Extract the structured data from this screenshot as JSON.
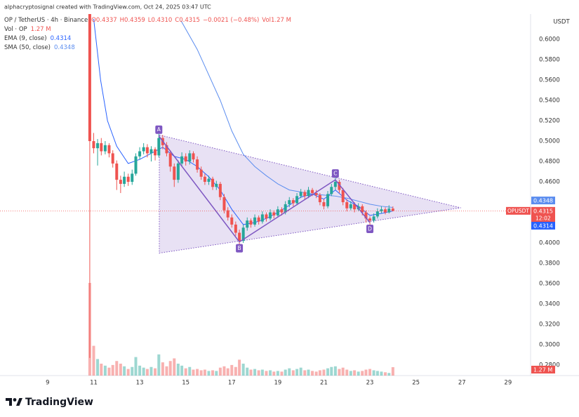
{
  "header": {
    "credit": "alphacryptosignal created with TradingView.com, Oct 24, 2025 03:47 UTC",
    "symbol": "OP / TetherUS · 4h · Binance",
    "ohlc": [
      "O0.4337",
      "H0.4359",
      "L0.4310",
      "C0.4315",
      "−0.0021 (−0.48%)",
      "Vol1.27 M"
    ],
    "currency": "USDT"
  },
  "footer": {
    "brand": "TradingView"
  },
  "chart_data": {
    "type": "candlestick",
    "up_color": "#26a69a",
    "down_color": "#ef5350",
    "x": [
      10.83,
      11,
      11.17,
      11.33,
      11.5,
      11.67,
      11.83,
      12,
      12.17,
      12.33,
      12.5,
      12.67,
      12.83,
      13,
      13.17,
      13.33,
      13.5,
      13.67,
      13.83,
      14,
      14.17,
      14.33,
      14.5,
      14.67,
      14.83,
      15,
      15.17,
      15.33,
      15.5,
      15.67,
      15.83,
      16,
      16.17,
      16.33,
      16.5,
      16.67,
      16.83,
      17,
      17.17,
      17.33,
      17.5,
      17.67,
      17.83,
      18,
      18.17,
      18.33,
      18.5,
      18.67,
      18.83,
      19,
      19.17,
      19.33,
      19.5,
      19.67,
      19.83,
      20,
      20.17,
      20.33,
      20.5,
      20.67,
      20.83,
      21,
      21.17,
      21.33,
      21.5,
      21.67,
      21.83,
      22,
      22.17,
      22.33,
      22.5,
      22.67,
      22.83,
      23,
      23.17,
      23.33,
      23.5,
      23.67,
      23.83,
      24
    ],
    "open": [
      0.64,
      0.5,
      0.493,
      0.498,
      0.49,
      0.496,
      0.488,
      0.478,
      0.462,
      0.458,
      0.465,
      0.46,
      0.468,
      0.485,
      0.49,
      0.494,
      0.488,
      0.492,
      0.486,
      0.503,
      0.496,
      0.488,
      0.475,
      0.462,
      0.478,
      0.485,
      0.48,
      0.488,
      0.482,
      0.472,
      0.465,
      0.46,
      0.463,
      0.455,
      0.458,
      0.445,
      0.432,
      0.425,
      0.418,
      0.41,
      0.402,
      0.415,
      0.422,
      0.418,
      0.425,
      0.421,
      0.428,
      0.424,
      0.43,
      0.427,
      0.433,
      0.43,
      0.438,
      0.442,
      0.439,
      0.446,
      0.45,
      0.446,
      0.452,
      0.449,
      0.447,
      0.44,
      0.436,
      0.448,
      0.455,
      0.46,
      0.452,
      0.44,
      0.434,
      0.438,
      0.433,
      0.436,
      0.43,
      0.424,
      0.422,
      0.426,
      0.431,
      0.433,
      0.43,
      0.4337
    ],
    "high": [
      0.65,
      0.508,
      0.502,
      0.503,
      0.5,
      0.498,
      0.491,
      0.481,
      0.466,
      0.47,
      0.468,
      0.472,
      0.488,
      0.494,
      0.498,
      0.497,
      0.495,
      0.494,
      0.507,
      0.506,
      0.499,
      0.491,
      0.478,
      0.481,
      0.489,
      0.488,
      0.491,
      0.49,
      0.485,
      0.475,
      0.468,
      0.466,
      0.465,
      0.461,
      0.46,
      0.448,
      0.435,
      0.428,
      0.421,
      0.413,
      0.418,
      0.425,
      0.424,
      0.428,
      0.427,
      0.431,
      0.43,
      0.433,
      0.432,
      0.436,
      0.435,
      0.441,
      0.445,
      0.444,
      0.449,
      0.453,
      0.452,
      0.455,
      0.454,
      0.452,
      0.449,
      0.443,
      0.451,
      0.458,
      0.464,
      0.462,
      0.454,
      0.443,
      0.441,
      0.44,
      0.439,
      0.438,
      0.432,
      0.426,
      0.429,
      0.434,
      0.436,
      0.435,
      0.437,
      0.4359
    ],
    "low": [
      0.287,
      0.488,
      0.476,
      0.486,
      0.487,
      0.484,
      0.474,
      0.452,
      0.449,
      0.455,
      0.456,
      0.457,
      0.466,
      0.482,
      0.487,
      0.484,
      0.48,
      0.481,
      0.484,
      0.492,
      0.485,
      0.47,
      0.455,
      0.459,
      0.475,
      0.476,
      0.477,
      0.479,
      0.469,
      0.462,
      0.457,
      0.457,
      0.452,
      0.452,
      0.442,
      0.429,
      0.422,
      0.415,
      0.407,
      0.398,
      0.4,
      0.412,
      0.415,
      0.416,
      0.418,
      0.419,
      0.421,
      0.422,
      0.424,
      0.425,
      0.427,
      0.428,
      0.435,
      0.436,
      0.437,
      0.444,
      0.443,
      0.444,
      0.446,
      0.444,
      0.437,
      0.433,
      0.434,
      0.446,
      0.452,
      0.449,
      0.437,
      0.431,
      0.432,
      0.43,
      0.431,
      0.427,
      0.42,
      0.414,
      0.42,
      0.424,
      0.429,
      0.428,
      0.429,
      0.431
    ],
    "close": [
      0.5,
      0.493,
      0.498,
      0.49,
      0.496,
      0.488,
      0.478,
      0.462,
      0.458,
      0.465,
      0.46,
      0.468,
      0.485,
      0.49,
      0.494,
      0.488,
      0.492,
      0.486,
      0.503,
      0.496,
      0.488,
      0.475,
      0.462,
      0.478,
      0.485,
      0.48,
      0.488,
      0.482,
      0.472,
      0.465,
      0.46,
      0.463,
      0.455,
      0.458,
      0.445,
      0.432,
      0.425,
      0.418,
      0.41,
      0.402,
      0.415,
      0.422,
      0.418,
      0.425,
      0.421,
      0.428,
      0.424,
      0.43,
      0.427,
      0.433,
      0.43,
      0.438,
      0.442,
      0.439,
      0.446,
      0.45,
      0.446,
      0.452,
      0.449,
      0.447,
      0.44,
      0.436,
      0.448,
      0.455,
      0.46,
      0.452,
      0.44,
      0.434,
      0.438,
      0.433,
      0.436,
      0.43,
      0.424,
      0.422,
      0.426,
      0.431,
      0.433,
      0.43,
      0.4337,
      0.4315
    ],
    "volume": {
      "name": "Vol · OP",
      "value_label": "1.27 M",
      "values": [
        14,
        4.5,
        2.5,
        1.8,
        1.5,
        1.2,
        1.6,
        2.2,
        1.8,
        1.4,
        1,
        1.3,
        2.8,
        1.5,
        1.2,
        1,
        1.3,
        1.1,
        3.2,
        2,
        1.4,
        2.2,
        2.6,
        1.8,
        1.5,
        1.1,
        1.3,
        0.9,
        1,
        0.8,
        0.9,
        0.7,
        0.8,
        0.7,
        1.2,
        1.4,
        1.1,
        1.6,
        1.3,
        2.4,
        1.8,
        1.2,
        0.9,
        1,
        0.8,
        0.9,
        0.7,
        0.8,
        0.6,
        0.7,
        0.6,
        0.9,
        1.1,
        0.8,
        1,
        1.2,
        0.8,
        0.9,
        0.7,
        0.6,
        0.8,
        0.9,
        1.1,
        1.3,
        1.4,
        1,
        1.2,
        0.9,
        0.7,
        0.8,
        0.6,
        0.7,
        0.9,
        1,
        0.8,
        0.7,
        0.6,
        0.5,
        0.4,
        1.27
      ]
    },
    "indicators": [
      {
        "name": "EMA (9, close)",
        "value_label": "0.4314",
        "color": "#2962ff",
        "x": [
          11,
          11.3,
          11.6,
          12,
          12.5,
          13,
          13.5,
          14,
          14.5,
          15,
          15.5,
          16,
          16.5,
          17,
          17.5,
          18,
          18.5,
          19,
          19.5,
          20,
          20.5,
          21,
          21.5,
          22,
          22.5,
          23,
          23.5,
          24
        ],
        "values": [
          0.62,
          0.56,
          0.52,
          0.495,
          0.478,
          0.482,
          0.488,
          0.494,
          0.485,
          0.482,
          0.475,
          0.465,
          0.452,
          0.433,
          0.418,
          0.42,
          0.424,
          0.43,
          0.437,
          0.445,
          0.448,
          0.443,
          0.452,
          0.442,
          0.436,
          0.427,
          0.429,
          0.4314
        ]
      },
      {
        "name": "SMA (50, close)",
        "value_label": "0.4348",
        "color": "#5b8def",
        "x": [
          14.8,
          15.5,
          16,
          16.5,
          17,
          17.5,
          18,
          18.5,
          19,
          19.5,
          20,
          20.5,
          21,
          21.5,
          22,
          22.5,
          23,
          23.5,
          24
        ],
        "values": [
          0.618,
          0.59,
          0.565,
          0.54,
          0.51,
          0.487,
          0.475,
          0.466,
          0.458,
          0.452,
          0.45,
          0.448,
          0.447,
          0.446,
          0.444,
          0.441,
          0.438,
          0.436,
          0.4348
        ]
      }
    ],
    "pattern": {
      "labels": [
        "A",
        "B",
        "C",
        "D"
      ],
      "x": [
        13.83,
        17.33,
        21.5,
        23
      ],
      "y": [
        0.505,
        0.401,
        0.462,
        0.42
      ],
      "triangle": {
        "x": [
          13.85,
          13.85,
          26.95
        ],
        "y": [
          0.506,
          0.39,
          0.4345
        ]
      }
    },
    "price_labels": [
      {
        "value": 0.4348,
        "label": "0.4348",
        "color": "#5b8def"
      },
      {
        "value": 0.4315,
        "label": "0.4315",
        "color": "#ef5350",
        "symbol": "OPUSDT",
        "countdown": "12:02"
      },
      {
        "value": 0.4314,
        "label": "0.4314",
        "color": "#2962ff"
      }
    ],
    "xlim": [
      6.93,
      29.95
    ],
    "ylim": [
      0.2697,
      0.6248
    ],
    "xticks": [
      9,
      11,
      13,
      15,
      17,
      19,
      21,
      23,
      25,
      27,
      29
    ],
    "yticks": [
      {
        "value": 0.6,
        "label": "0.6000"
      },
      {
        "value": 0.58,
        "label": "0.5800"
      },
      {
        "value": 0.56,
        "label": "0.5600"
      },
      {
        "value": 0.54,
        "label": "0.5400"
      },
      {
        "value": 0.52,
        "label": "0.5200"
      },
      {
        "value": 0.5,
        "label": "0.5000"
      },
      {
        "value": 0.48,
        "label": "0.4800"
      },
      {
        "value": 0.46,
        "label": "0.4600"
      },
      {
        "value": 0.4,
        "label": "0.4000"
      },
      {
        "value": 0.38,
        "label": "0.3800"
      },
      {
        "value": 0.36,
        "label": "0.3600"
      },
      {
        "value": 0.34,
        "label": "0.3400"
      },
      {
        "value": 0.32,
        "label": "0.3200"
      },
      {
        "value": 0.3,
        "label": "0.3000"
      },
      {
        "value": 0.28,
        "label": "0.2800"
      }
    ],
    "grid": false
  }
}
